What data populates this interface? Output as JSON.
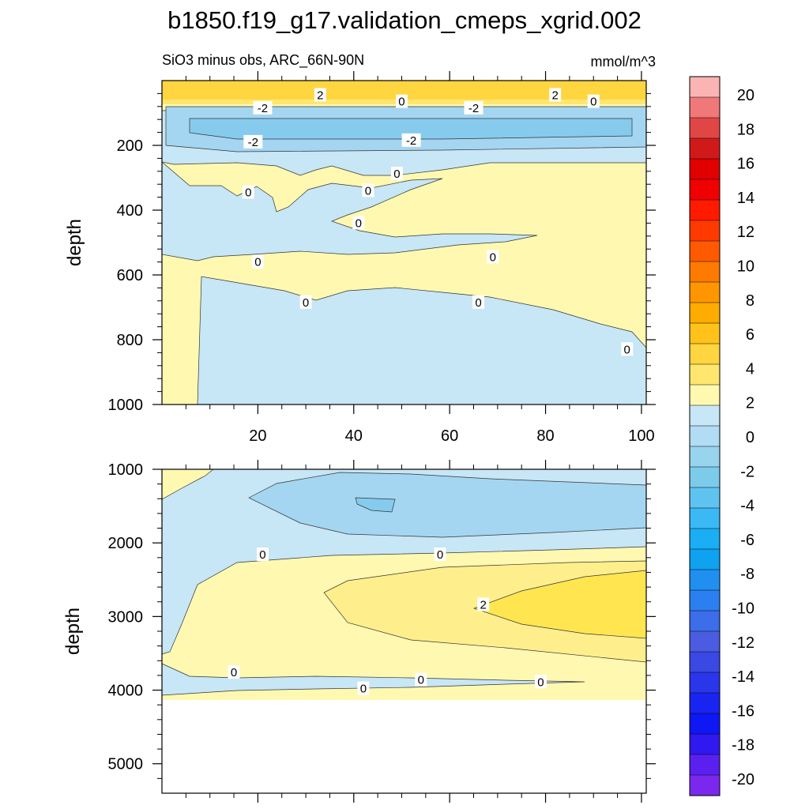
{
  "chart_data": {
    "type": "contour",
    "title": "b1850.f19_g17.validation_cmeps_xgrid.002",
    "subtitle_left": "SiO3 minus obs, ARC_66N-90N",
    "subtitle_right": "mmol/m^3",
    "panels": [
      {
        "name": "upper",
        "ylabel": "depth",
        "ylim": [
          0,
          1000
        ],
        "y_ticks": [
          200,
          400,
          600,
          800,
          1000
        ],
        "xlim": [
          0,
          101
        ],
        "x_ticks": [
          20,
          40,
          60,
          80,
          100
        ],
        "contour_labels": [
          {
            "text": "2",
            "x": 33,
            "y": 45
          },
          {
            "text": "2",
            "x": 82,
            "y": 45
          },
          {
            "text": "0",
            "x": 50,
            "y": 65
          },
          {
            "text": "0",
            "x": 90,
            "y": 65
          },
          {
            "text": "-2",
            "x": 21,
            "y": 85
          },
          {
            "text": "-2",
            "x": 65,
            "y": 85
          },
          {
            "text": "-2",
            "x": 19,
            "y": 190
          },
          {
            "text": "-2",
            "x": 52,
            "y": 185
          },
          {
            "text": "0",
            "x": 49,
            "y": 288
          },
          {
            "text": "0",
            "x": 18,
            "y": 345
          },
          {
            "text": "0",
            "x": 43,
            "y": 340
          },
          {
            "text": "0",
            "x": 41,
            "y": 440
          },
          {
            "text": "0",
            "x": 20,
            "y": 560
          },
          {
            "text": "0",
            "x": 69,
            "y": 545
          },
          {
            "text": "0",
            "x": 30,
            "y": 685
          },
          {
            "text": "0",
            "x": 66,
            "y": 685
          },
          {
            "text": "0",
            "x": 97,
            "y": 830
          }
        ]
      },
      {
        "name": "lower",
        "ylabel": "depth",
        "ylim": [
          1000,
          5400
        ],
        "y_ticks": [
          1000,
          2000,
          3000,
          4000,
          5000
        ],
        "xlim": [
          0,
          101
        ],
        "contour_labels": [
          {
            "text": "0",
            "x": 21,
            "y": 2160
          },
          {
            "text": "0",
            "x": 58,
            "y": 2160
          },
          {
            "text": "2",
            "x": 67,
            "y": 2840
          },
          {
            "text": "0",
            "x": 15,
            "y": 3760
          },
          {
            "text": "0",
            "x": 42,
            "y": 3980
          },
          {
            "text": "0",
            "x": 54,
            "y": 3860
          },
          {
            "text": "0",
            "x": 79,
            "y": 3890
          }
        ]
      }
    ],
    "colorbar": {
      "labels": [
        "20",
        "18",
        "16",
        "14",
        "12",
        "10",
        "8",
        "6",
        "4",
        "2",
        "0",
        "-2",
        "-4",
        "-6",
        "-8",
        "-10",
        "-12",
        "-14",
        "-16",
        "-18",
        "-20"
      ],
      "colors": [
        "#fbb4b4",
        "#f07878",
        "#e04646",
        "#d01a1a",
        "#e00000",
        "#f00000",
        "#ff1a00",
        "#ff3a00",
        "#ff5a00",
        "#ff7a00",
        "#ff9600",
        "#ffac00",
        "#ffc21a",
        "#ffd540",
        "#ffe66e",
        "#fff8b0",
        "#c7e6f6",
        "#b1dcf3",
        "#99d4ef",
        "#7ccbeb",
        "#5fc3ef",
        "#3ab9f5",
        "#1aaef5",
        "#0ea2f0",
        "#2090f0",
        "#2b7ff0",
        "#3b6ee8",
        "#4a5de0",
        "#3a48e4",
        "#2a36ea",
        "#1a24f0",
        "#0d18f4",
        "#3018f0",
        "#5a20f0",
        "#7a28ee"
      ]
    }
  }
}
